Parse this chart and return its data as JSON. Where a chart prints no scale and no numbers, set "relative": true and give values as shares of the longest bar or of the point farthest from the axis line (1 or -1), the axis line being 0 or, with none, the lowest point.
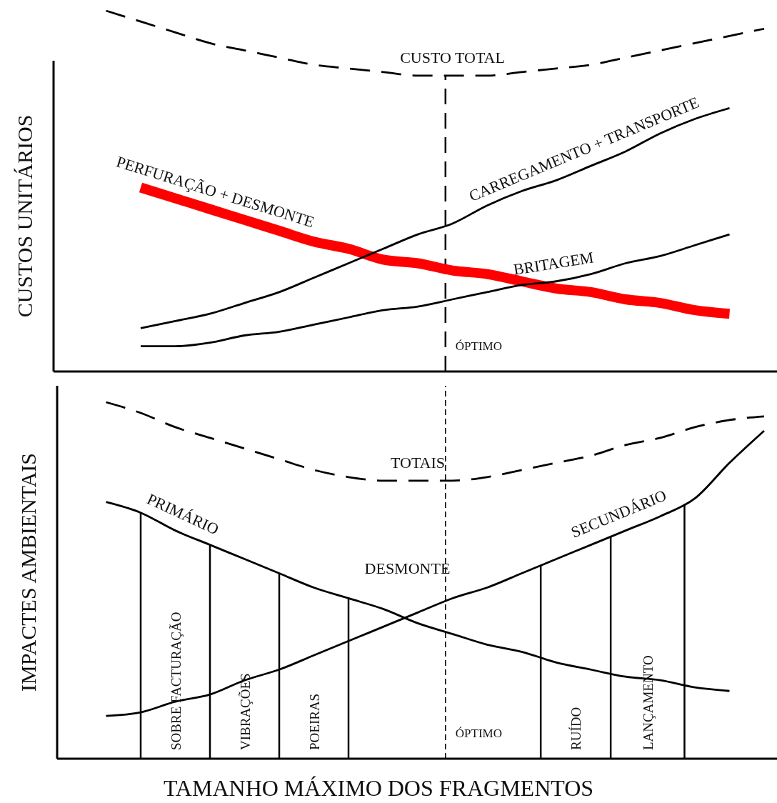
{
  "chart_data": [
    {
      "type": "line",
      "relative": true,
      "ylabel": "CUSTOS UNITÁRIOS",
      "categories": [
        null,
        null,
        null,
        null,
        null,
        null,
        null,
        null,
        null,
        null,
        null,
        null,
        null,
        null,
        null,
        null,
        null,
        null,
        null,
        null,
        null
      ],
      "series": [
        {
          "name": "CUSTO TOTAL",
          "color": "#000000",
          "line_style": "dashed",
          "values": [
            null,
            1.0,
            0.97,
            0.94,
            0.91,
            0.89,
            0.87,
            0.85,
            0.84,
            0.83,
            0.82,
            0.82,
            0.82,
            0.83,
            0.84,
            0.85,
            0.87,
            0.89,
            0.91,
            0.93,
            0.95
          ]
        },
        {
          "name": "PERFURAÇÃO + DESMONTE",
          "color": "#ff0000",
          "values": [
            null,
            null,
            0.51,
            0.48,
            0.45,
            0.42,
            0.39,
            0.36,
            0.34,
            0.31,
            0.3,
            0.28,
            0.27,
            0.25,
            0.23,
            0.22,
            0.2,
            0.19,
            0.17,
            0.16,
            null
          ]
        },
        {
          "name": "CARREGAMENTO + TRANSPORTE",
          "color": "#000000",
          "values": [
            null,
            null,
            0.12,
            0.14,
            0.16,
            0.19,
            0.22,
            0.26,
            0.3,
            0.34,
            0.38,
            0.41,
            0.46,
            0.5,
            0.53,
            0.57,
            0.61,
            0.66,
            0.7,
            0.73,
            null
          ]
        },
        {
          "name": "BRITAGEM",
          "color": "#000000",
          "values": [
            null,
            null,
            0.07,
            0.07,
            0.08,
            0.1,
            0.11,
            0.13,
            0.15,
            0.17,
            0.18,
            0.2,
            0.22,
            0.24,
            0.25,
            0.27,
            0.3,
            0.32,
            0.35,
            0.38,
            null
          ]
        }
      ],
      "annotations": [
        "ÓPTIMO"
      ]
    },
    {
      "type": "line",
      "relative": true,
      "ylabel": "IMPACTES AMBIENTAIS",
      "xlabel": "TAMANHO MÁXIMO DOS FRAGMENTOS",
      "categories": [
        null,
        null,
        null,
        null,
        null,
        null,
        null,
        null,
        null,
        null,
        null,
        null,
        null,
        null,
        null,
        null,
        null,
        null,
        null,
        null,
        null
      ],
      "series": [
        {
          "name": "TOTAIS",
          "color": "#000000",
          "line_style": "dashed",
          "values": [
            null,
            1.0,
            0.97,
            0.93,
            0.9,
            0.87,
            0.84,
            0.81,
            0.79,
            0.78,
            0.78,
            0.78,
            0.79,
            0.81,
            0.83,
            0.85,
            0.88,
            0.9,
            0.93,
            0.95,
            0.96
          ]
        },
        {
          "name": "PRIMÁRIO",
          "color": "#000000",
          "values": [
            null,
            0.72,
            0.69,
            0.64,
            0.6,
            0.56,
            0.52,
            0.48,
            0.45,
            0.42,
            0.38,
            0.35,
            0.32,
            0.3,
            0.27,
            0.25,
            0.23,
            0.22,
            0.2,
            0.19,
            null
          ]
        },
        {
          "name": "SECUNDÁRIO",
          "color": "#000000",
          "values": [
            null,
            0.12,
            0.13,
            0.16,
            0.18,
            0.22,
            0.25,
            0.29,
            0.33,
            0.37,
            0.41,
            0.45,
            0.48,
            0.52,
            0.56,
            0.6,
            0.64,
            0.68,
            0.73,
            0.83,
            0.92
          ]
        }
      ],
      "annotations": [
        "DESMONTE",
        "ÓPTIMO",
        "SOBRE FACTURAÇÃO",
        "VIBRAÇÕES",
        "POEIRAS",
        "RUÍDO",
        "LANÇAMENTO"
      ]
    }
  ]
}
